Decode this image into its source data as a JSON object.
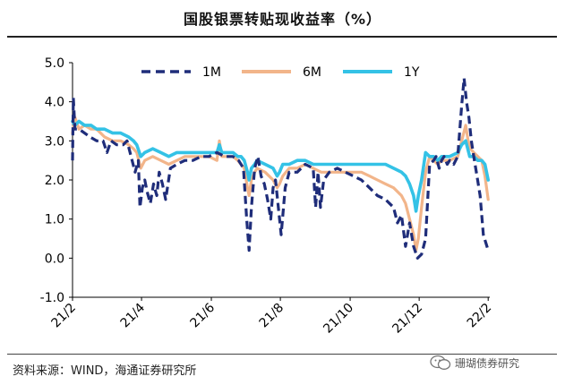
{
  "title": "国股银票转贴现收益率（%）",
  "source": "资料来源：WIND，海通证券研究所",
  "watermark": "珊瑚债券研究",
  "chart_data": {
    "type": "line",
    "title": "国股银票转贴现收益率（%）",
    "xlabel": "",
    "ylabel": "",
    "ylim": [
      -1.0,
      5.0
    ],
    "yticks": [
      -1.0,
      0.0,
      1.0,
      2.0,
      3.0,
      4.0,
      5.0
    ],
    "ytick_labels": [
      "-1.0",
      "0.0",
      "1.0",
      "2.0",
      "3.0",
      "4.0",
      "5.0"
    ],
    "xlim": [
      0,
      52
    ],
    "xticks": [
      0,
      8.6,
      17.3,
      25.9,
      34.6,
      43.2,
      51.8
    ],
    "xtick_labels": [
      "21/2",
      "21/4",
      "21/6",
      "21/8",
      "21/10",
      "21/12",
      "22/2"
    ],
    "legend_position": "top",
    "series": [
      {
        "name": "1M",
        "style": "dashed",
        "color": "#1f2d7a",
        "x": [
          0,
          0.1,
          0.3,
          0.8,
          1.5,
          2.2,
          3,
          3.8,
          4.3,
          4.8,
          5.5,
          6.3,
          6.8,
          7.3,
          7.8,
          8.2,
          8.4,
          8.7,
          9.0,
          9.3,
          9.7,
          10.1,
          10.5,
          10.8,
          11.2,
          11.6,
          12.2,
          13,
          14,
          15,
          16,
          17,
          18,
          19,
          20,
          20.7,
          21.3,
          21.7,
          22.0,
          22.3,
          22.7,
          23.1,
          23.5,
          23.9,
          24.3,
          24.7,
          25.0,
          25.3,
          25.7,
          26.0,
          26.5,
          27,
          28,
          29,
          30,
          30.3,
          30.6,
          30.9,
          31.3,
          32,
          33,
          34,
          35,
          36,
          37,
          38,
          39,
          40,
          40.5,
          41,
          41.5,
          42,
          42.5,
          43,
          43.5,
          44,
          44.5,
          45,
          45.3,
          45.7,
          46,
          46.3,
          46.7,
          47,
          47.5,
          48,
          48.5,
          48.8,
          49.1,
          49.4,
          49.7,
          50,
          50.4,
          50.8,
          51.2,
          51.5,
          51.8
        ],
        "y": [
          2.5,
          4.1,
          3.3,
          3.3,
          3.2,
          3.1,
          3.0,
          3.0,
          2.7,
          3.0,
          2.9,
          2.9,
          3.0,
          2.6,
          2.2,
          2.5,
          1.3,
          1.8,
          2.0,
          1.7,
          1.4,
          1.9,
          1.6,
          2.2,
          1.9,
          1.5,
          2.3,
          2.4,
          2.5,
          2.5,
          2.6,
          2.6,
          2.7,
          2.6,
          2.6,
          2.5,
          2.3,
          1.0,
          0.2,
          1.3,
          2.3,
          2.6,
          2.1,
          1.9,
          1.5,
          1.0,
          1.8,
          2.0,
          1.2,
          0.6,
          1.8,
          2.2,
          2.2,
          2.4,
          2.3,
          1.3,
          2.2,
          1.3,
          2.0,
          2.2,
          2.3,
          2.2,
          2.1,
          2.0,
          1.8,
          1.6,
          1.5,
          1.3,
          0.9,
          1.1,
          0.3,
          0.9,
          0.3,
          0.0,
          0.1,
          0.5,
          2.4,
          2.5,
          2.6,
          2.3,
          2.5,
          2.6,
          2.4,
          2.5,
          2.4,
          2.6,
          3.9,
          4.6,
          4.0,
          3.6,
          3.0,
          2.6,
          2.1,
          1.6,
          0.6,
          0.4,
          0.2
        ]
      },
      {
        "name": "6M",
        "style": "solid",
        "color": "#f2b58a",
        "x": [
          0,
          0.3,
          0.8,
          1.5,
          2.3,
          3,
          4,
          5,
          6,
          7,
          7.6,
          8,
          8.5,
          9,
          10,
          11,
          12,
          13,
          14,
          15,
          16,
          17,
          18,
          18.3,
          18.6,
          19,
          20,
          20.6,
          21,
          21.4,
          21.8,
          22.0,
          22.3,
          22.7,
          23,
          24,
          25,
          25.5,
          25.8,
          26.2,
          27,
          28,
          29,
          30,
          31,
          32,
          33,
          34,
          35,
          36,
          37,
          38,
          39,
          40,
          41,
          41.5,
          42,
          42.5,
          42.8,
          43.1,
          43.5,
          44,
          44.5,
          45,
          45.5,
          46,
          47,
          48,
          49,
          49.3,
          49.6,
          50,
          50.5,
          51,
          51.4,
          51.8
        ],
        "y": [
          3.2,
          3.6,
          3.3,
          3.4,
          3.3,
          3.3,
          3.1,
          3.0,
          3.0,
          2.9,
          2.8,
          2.7,
          2.3,
          2.5,
          2.6,
          2.5,
          2.4,
          2.5,
          2.6,
          2.6,
          2.6,
          2.6,
          2.5,
          3.0,
          2.6,
          2.6,
          2.6,
          2.5,
          2.4,
          2.3,
          1.8,
          1.6,
          2.0,
          2.2,
          2.3,
          2.2,
          2.0,
          1.8,
          1.9,
          2.1,
          2.3,
          2.3,
          2.4,
          2.3,
          2.2,
          2.2,
          2.2,
          2.2,
          2.2,
          2.2,
          2.1,
          2.0,
          1.9,
          1.8,
          1.6,
          1.4,
          1.0,
          0.6,
          0.2,
          0.5,
          1.3,
          2.2,
          2.6,
          2.5,
          2.4,
          2.5,
          2.5,
          2.6,
          3.4,
          3.0,
          2.8,
          2.7,
          2.6,
          2.5,
          2.1,
          1.5
        ]
      },
      {
        "name": "1Y",
        "style": "solid",
        "color": "#34c2e6",
        "x": [
          0,
          0.3,
          0.8,
          1.5,
          2.3,
          3,
          4,
          5,
          6,
          7,
          7.6,
          8,
          8.5,
          9,
          10,
          11,
          12,
          13,
          14,
          15,
          16,
          17,
          18,
          18.3,
          18.6,
          19,
          20,
          20.6,
          21,
          21.4,
          21.8,
          22.0,
          22.3,
          22.7,
          23,
          24,
          25,
          25.5,
          25.8,
          26.2,
          27,
          28,
          29,
          30,
          31,
          32,
          33,
          34,
          35,
          36,
          37,
          38,
          39,
          40,
          41,
          41.5,
          42,
          42.5,
          42.8,
          43.1,
          43.5,
          44,
          44.5,
          45,
          45.5,
          46,
          47,
          48,
          48.5,
          49,
          49.5,
          50,
          50.5,
          51,
          51.4,
          51.8
        ],
        "y": [
          3.5,
          3.4,
          3.5,
          3.4,
          3.4,
          3.3,
          3.3,
          3.2,
          3.2,
          3.1,
          3.0,
          2.9,
          2.6,
          2.7,
          2.8,
          2.7,
          2.6,
          2.7,
          2.7,
          2.7,
          2.7,
          2.7,
          2.7,
          2.9,
          2.7,
          2.7,
          2.7,
          2.6,
          2.6,
          2.5,
          2.2,
          2.0,
          2.3,
          2.4,
          2.5,
          2.4,
          2.3,
          2.1,
          2.2,
          2.4,
          2.4,
          2.5,
          2.5,
          2.4,
          2.4,
          2.4,
          2.4,
          2.4,
          2.4,
          2.4,
          2.4,
          2.4,
          2.4,
          2.3,
          2.2,
          2.1,
          1.9,
          1.6,
          1.2,
          1.6,
          2.0,
          2.7,
          2.6,
          2.6,
          2.5,
          2.6,
          2.6,
          2.7,
          2.9,
          3.0,
          2.6,
          2.6,
          2.5,
          2.5,
          2.4,
          2.0
        ]
      }
    ]
  }
}
